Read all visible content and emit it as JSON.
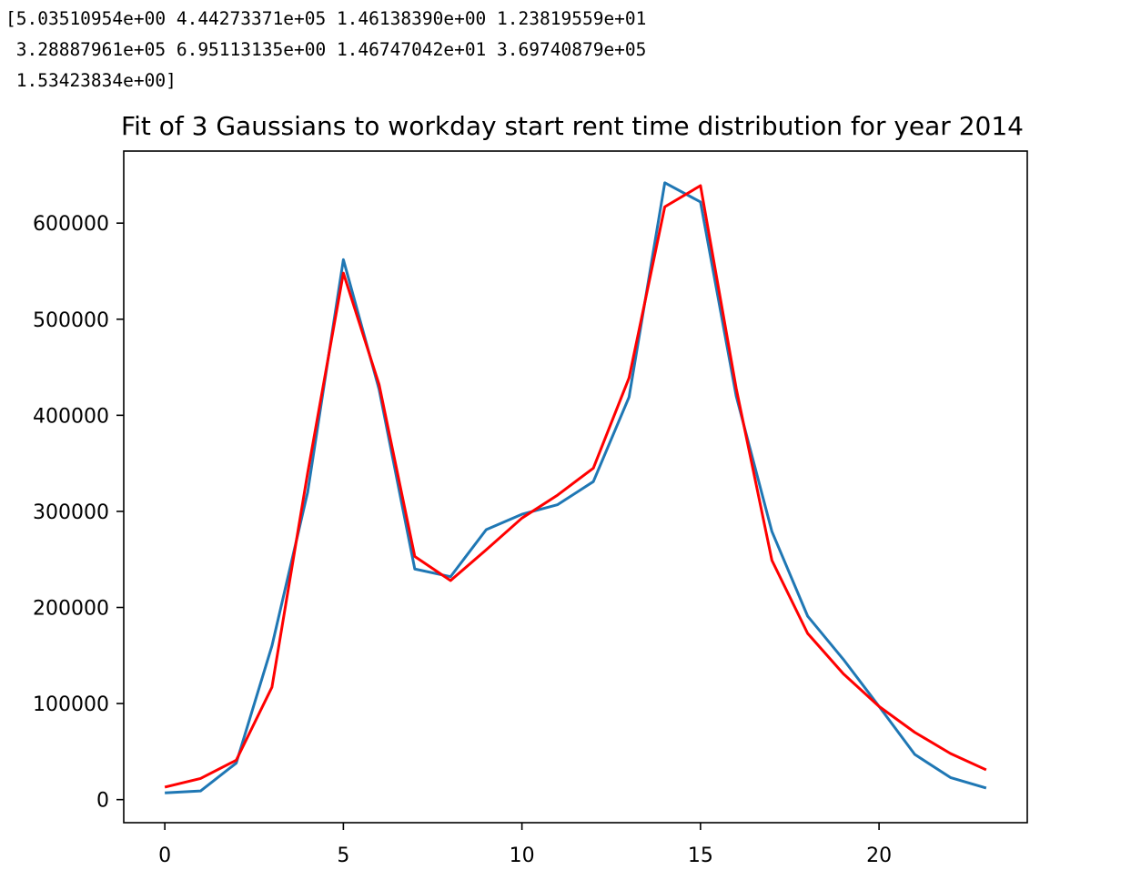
{
  "console": {
    "lines": [
      "[5.03510954e+00 4.44273371e+05 1.46138390e+00 1.23819559e+01",
      " 3.28887961e+05 6.95113135e+00 1.46747042e+01 3.69740879e+05",
      " 1.53423834e+00]"
    ]
  },
  "chart_data": {
    "type": "line",
    "title": "Fit of 3 Gaussians to workday start rent time distribution for year 2014",
    "xlabel": "",
    "ylabel": "",
    "xlim": [
      -1.15,
      24.15
    ],
    "ylim": [
      -24000,
      675000
    ],
    "xticks": [
      0,
      5,
      10,
      15,
      20
    ],
    "yticks": [
      0,
      100000,
      200000,
      300000,
      400000,
      500000,
      600000
    ],
    "grid": false,
    "x": [
      0,
      1,
      2,
      3,
      4,
      5,
      6,
      7,
      8,
      9,
      10,
      11,
      12,
      13,
      14,
      15,
      16,
      17,
      18,
      19,
      20,
      21,
      22,
      23
    ],
    "series": [
      {
        "color": "#1f77b4",
        "values": [
          7000,
          9000,
          38000,
          160000,
          320000,
          562000,
          427000,
          240000,
          232000,
          281000,
          297000,
          307000,
          331000,
          419000,
          642000,
          622000,
          420000,
          279000,
          191000,
          146000,
          97000,
          47000,
          23000,
          12000
        ]
      },
      {
        "color": "#ff0000",
        "values": [
          13000,
          22000,
          41000,
          117000,
          340000,
          548000,
          432000,
          253000,
          228000,
          260000,
          293000,
          317000,
          345000,
          439000,
          617000,
          639000,
          428000,
          249000,
          173000,
          131000,
          97000,
          70000,
          48000,
          31000
        ]
      }
    ]
  }
}
